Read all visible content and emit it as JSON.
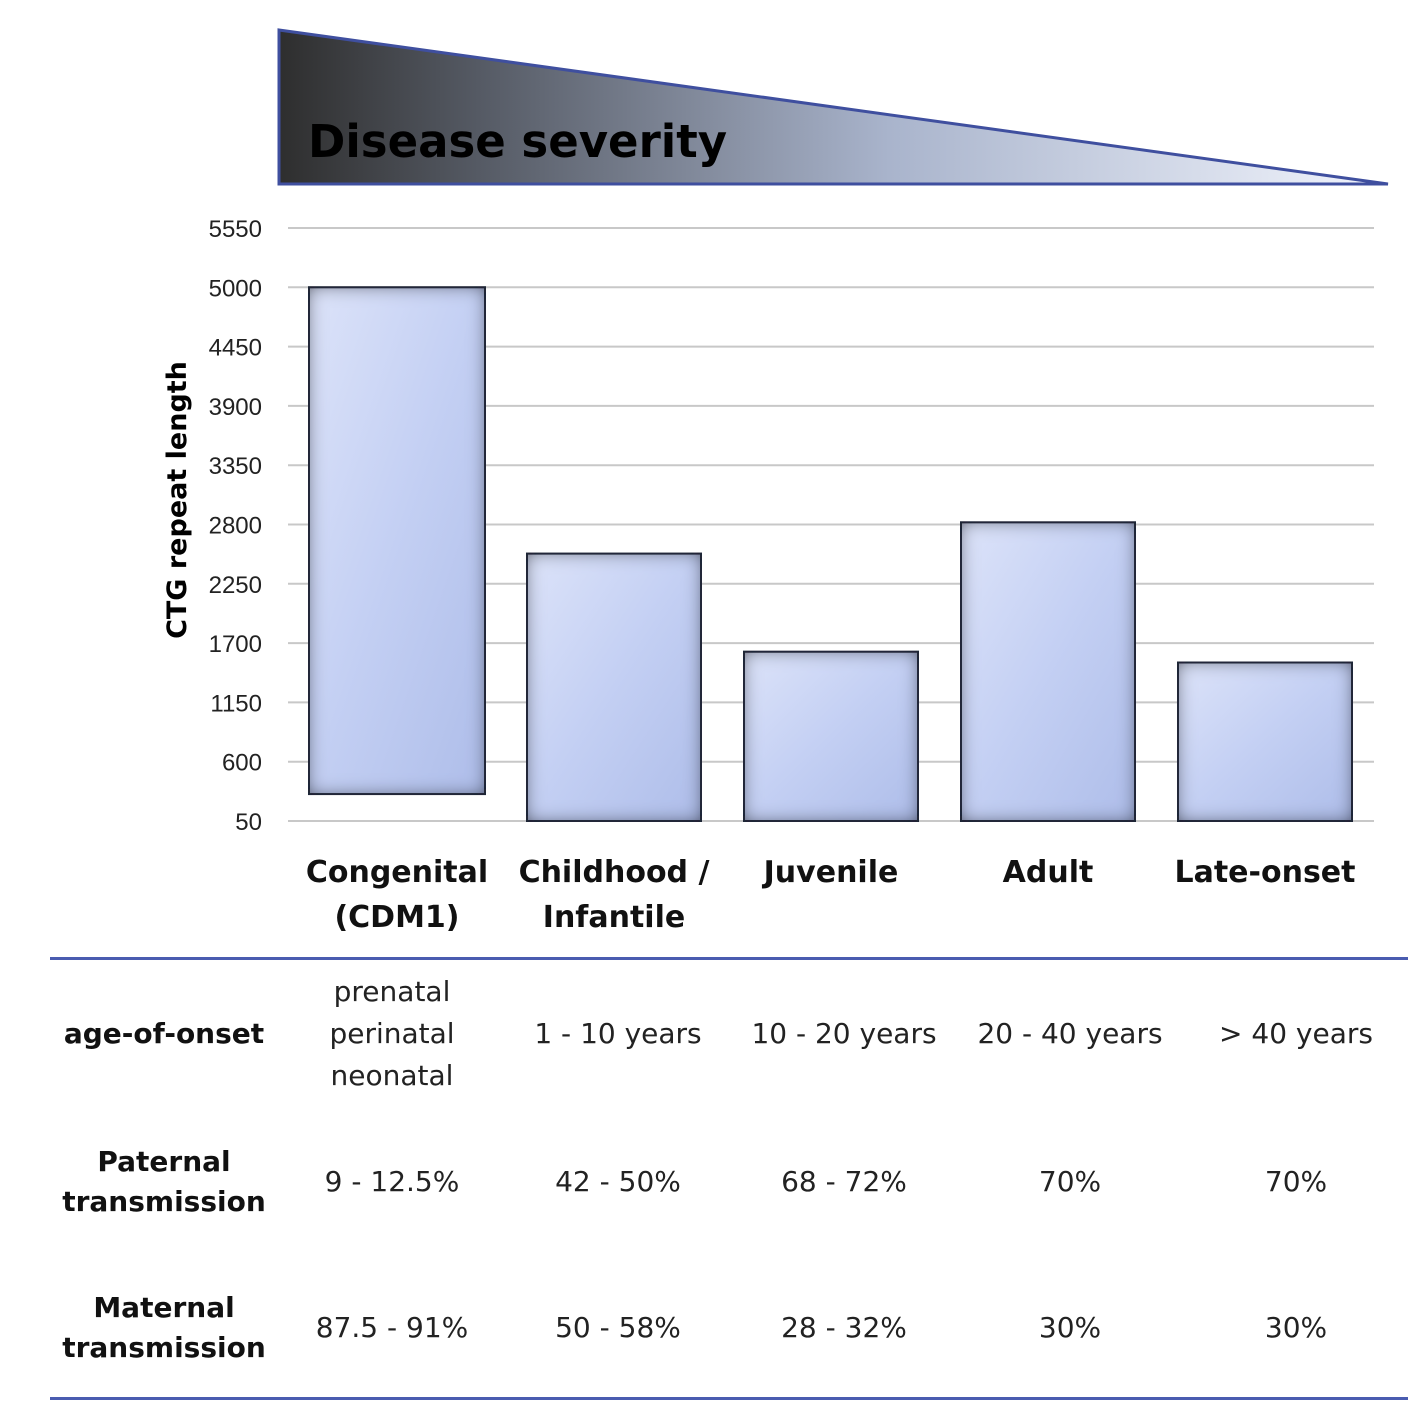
{
  "banner": {
    "text": "Disease severity"
  },
  "chart_data": {
    "type": "bar",
    "categories": [
      "Congenital\n(CDM1)",
      "Childhood /\nInfantile",
      "Juvenile",
      "Adult",
      "Late-onset"
    ],
    "bars": [
      {
        "low": 300,
        "high": 5000
      },
      {
        "low": 50,
        "high": 2530
      },
      {
        "low": 50,
        "high": 1620
      },
      {
        "low": 50,
        "high": 2820
      },
      {
        "low": 50,
        "high": 1520
      }
    ],
    "ylabel": "CTG repeat length",
    "yticks": [
      50,
      600,
      1150,
      1700,
      2250,
      2800,
      3350,
      3900,
      4450,
      5000,
      5550
    ],
    "ylim": [
      50,
      5550
    ],
    "grid": true,
    "legend": "none"
  },
  "table": {
    "rows": [
      {
        "label": "age-of-onset",
        "cells": [
          "prenatal\nperinatal\nneonatal",
          "1 - 10 years",
          "10 - 20 years",
          "20 - 40 years",
          "> 40 years"
        ]
      },
      {
        "label": "Paternal\ntransmission",
        "cells": [
          "9 - 12.5%",
          "42 - 50%",
          "68 - 72%",
          "70%",
          "70%"
        ]
      },
      {
        "label": "Maternal\ntransmission",
        "cells": [
          "87.5 - 91%",
          "50 - 58%",
          "28 - 32%",
          "30%",
          "30%"
        ]
      }
    ]
  },
  "colors": {
    "bar_light": "#d4dcf7",
    "bar_mid": "#b9c6f0",
    "bar_edge": "#2a2e40",
    "grid": "#c8c8c8",
    "banner_dark": "#333333",
    "banner_light": "#e8eefc",
    "banner_border": "#3f4f9f",
    "rule": "#4a5cb0"
  }
}
